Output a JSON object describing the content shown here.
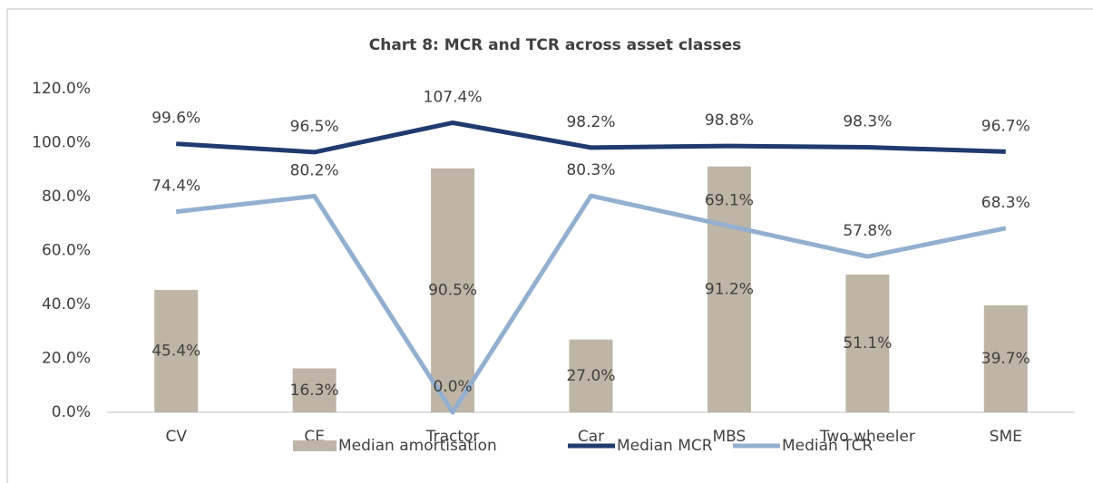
{
  "chart_data": {
    "type": "combo",
    "title": "Chart 8: MCR and TCR across asset classes",
    "categories": [
      "CV",
      "CE",
      "Tractor",
      "Car",
      "MBS",
      "Two wheeler",
      "SME"
    ],
    "series": [
      {
        "name": "Median amortisation",
        "type": "bar",
        "color": "#bfb5a6",
        "values": [
          45.4,
          16.3,
          90.5,
          27.0,
          91.2,
          51.1,
          39.7
        ],
        "value_labels": [
          "45.4%",
          "16.3%",
          "90.5%",
          "27.0%",
          "91.2%",
          "51.1%",
          "39.7%"
        ]
      },
      {
        "name": "Median MCR",
        "type": "line",
        "color": "#1f3a6e",
        "values": [
          99.6,
          96.5,
          107.4,
          98.2,
          98.8,
          98.3,
          96.7
        ],
        "value_labels": [
          "99.6%",
          "96.5%",
          "107.4%",
          "98.2%",
          "98.8%",
          "98.3%",
          "96.7%"
        ]
      },
      {
        "name": "Median TCR",
        "type": "line",
        "color": "#93afd0",
        "values": [
          74.4,
          80.2,
          0.0,
          80.3,
          69.1,
          57.8,
          68.3
        ],
        "value_labels": [
          "74.4%",
          "80.2%",
          "0.0%",
          "80.3%",
          "69.1%",
          "57.8%",
          "68.3%"
        ]
      }
    ],
    "ylim": [
      0,
      120
    ],
    "yticks": [
      {
        "value": 0,
        "label": "0.0%"
      },
      {
        "value": 20,
        "label": "20.0%"
      },
      {
        "value": 40,
        "label": "40.0%"
      },
      {
        "value": 60,
        "label": "60.0%"
      },
      {
        "value": 80,
        "label": "80.0%"
      },
      {
        "value": 100,
        "label": "100.0%"
      },
      {
        "value": 120,
        "label": "120.0%"
      }
    ],
    "grid": false,
    "legend": "bottom"
  }
}
